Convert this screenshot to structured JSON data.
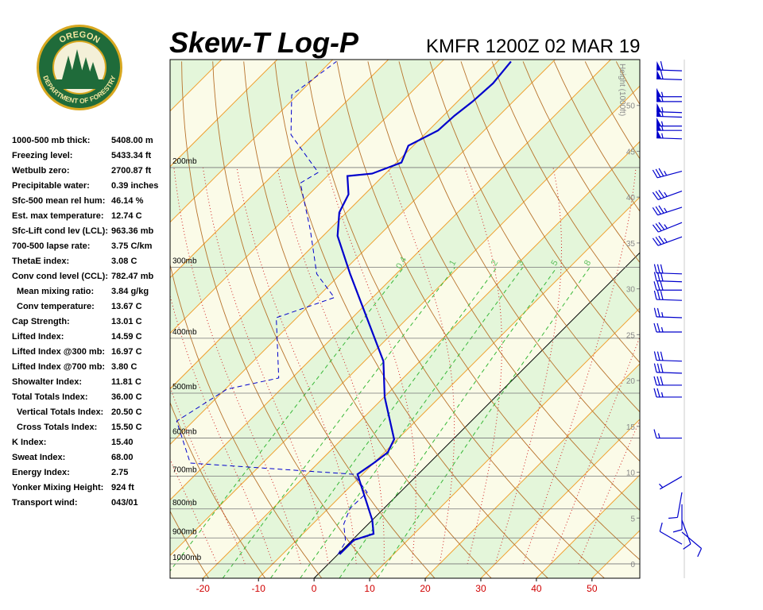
{
  "logo": {
    "top": "OREGON",
    "bottom": "DEPARTMENT OF FORESTRY"
  },
  "stats": [
    [
      "1000-500 mb thick:",
      "5408.00 m"
    ],
    [
      "Freezing level:",
      "5433.34 ft"
    ],
    [
      "Wetbulb zero:",
      "2700.87 ft"
    ],
    [
      "Precipitable water:",
      "0.39 inches"
    ],
    [
      "Sfc-500 mean rel hum:",
      "46.14 %"
    ],
    [
      "Est. max temperature:",
      "12.74 C"
    ],
    [
      "Sfc-Lift cond lev (LCL):",
      "963.36 mb"
    ],
    [
      "700-500 lapse rate:",
      "3.75 C/km"
    ],
    [
      "ThetaE index:",
      "3.08 C"
    ],
    [
      "Conv cond level (CCL):",
      "782.47 mb"
    ],
    [
      "Mean mixing ratio:",
      "3.84 g/kg"
    ],
    [
      "Conv temperature:",
      "13.67 C"
    ],
    [
      "Cap Strength:",
      "13.01 C"
    ],
    [
      "Lifted Index:",
      "14.59 C"
    ],
    [
      "Lifted Index @300 mb:",
      "16.97 C"
    ],
    [
      "Lifted Index @700 mb:",
      "3.80 C"
    ],
    [
      "Showalter Index:",
      "11.81 C"
    ],
    [
      "Total Totals Index:",
      "36.00 C"
    ],
    [
      "Vertical Totals Index:",
      "20.50 C"
    ],
    [
      "Cross Totals Index:",
      "15.50 C"
    ],
    [
      "K Index:",
      "15.40"
    ],
    [
      "Sweat Index:",
      "68.00"
    ],
    [
      "Energy Index:",
      "2.75"
    ],
    [
      "Yonker Mixing Height:",
      "924 ft"
    ],
    [
      "Transport wind:",
      "043/01"
    ]
  ],
  "chart_data": {
    "type": "skewt",
    "title": "Skew-T Log-P",
    "subtitle": "KMFR 1200Z 02 MAR 19",
    "xlim": [
      -25.9,
      58.6
    ],
    "xticks": [
      -20,
      -10,
      0,
      10,
      20,
      30,
      40,
      50
    ],
    "ylim": [
      1060,
      129
    ],
    "log_y": true,
    "yticks": [
      {
        "value": 1000,
        "label": "1000mb"
      },
      {
        "value": 900,
        "label": "900mb"
      },
      {
        "value": 800,
        "label": "800mb"
      },
      {
        "value": 700,
        "label": "700mb"
      },
      {
        "value": 600,
        "label": "600mb"
      },
      {
        "value": 500,
        "label": "500mb"
      },
      {
        "value": 400,
        "label": "400mb"
      },
      {
        "value": 300,
        "label": "300mb"
      },
      {
        "value": 200,
        "label": "200mb"
      }
    ],
    "y2label": "Height (1000ft)",
    "y2lim": [
      -1.56,
      55
    ],
    "y2ticks": [
      0,
      5,
      10,
      15,
      20,
      25,
      30,
      35,
      40,
      45,
      50
    ],
    "mixing_ratio_lines": [
      0.4,
      1,
      2,
      3,
      5,
      8
    ],
    "series": [
      {
        "color": "#0000cc",
        "style": "solid",
        "x": [
          0.3,
          0.3,
          2.7,
          0,
          -10.9,
          -10,
          -9.4,
          -10.6,
          -19.9,
          -26.6,
          -48.3,
          -57.4,
          -61.3,
          -62.9,
          -66.4,
          -62.4,
          -59.1,
          -60.9,
          -58.3,
          -58,
          -57.3,
          -56.9,
          -57.6
        ],
        "values": [
          962,
          908,
          885,
          837,
          695,
          664,
          636,
          603,
          508,
          439,
          308,
          264,
          240,
          223,
          207,
          205,
          196,
          183,
          172,
          162,
          153,
          142,
          130
        ]
      },
      {
        "color": "#0000cc",
        "style": "dashed",
        "x": [
          0,
          -0.9,
          -4.4,
          -6.1,
          -5.9,
          -11.6,
          -43,
          -53,
          -49.7,
          -42.4,
          -53.7,
          -46.9,
          -54.3,
          -63.3,
          -73.6,
          -72.3,
          -84,
          -91,
          -89
        ],
        "values": [
          962,
          914,
          851,
          798,
          748,
          695,
          664,
          560,
          492,
          470,
          368,
          339,
          308,
          258,
          213,
          204,
          175,
          149,
          130
        ]
      }
    ],
    "winds": {
      "pressure": [
        135,
        140,
        150,
        153,
        160,
        163,
        169,
        172,
        178,
        203,
        220,
        235,
        250,
        265,
        308,
        318,
        329,
        343,
        368,
        390,
        439,
        461,
        484,
        508,
        600,
        701,
        748,
        785,
        837,
        879,
        923
      ],
      "direction": [
        272,
        272,
        270,
        270,
        272,
        272,
        270,
        270,
        272,
        255,
        250,
        252,
        248,
        250,
        272,
        272,
        270,
        272,
        272,
        270,
        272,
        272,
        270,
        270,
        270,
        240,
        190,
        180,
        160,
        130,
        300
      ],
      "speed": [
        60,
        60,
        55,
        55,
        55,
        55,
        55,
        55,
        55,
        35,
        35,
        35,
        35,
        35,
        30,
        30,
        30,
        30,
        25,
        25,
        30,
        30,
        30,
        25,
        15,
        5,
        10,
        10,
        10,
        10,
        10
      ]
    }
  }
}
